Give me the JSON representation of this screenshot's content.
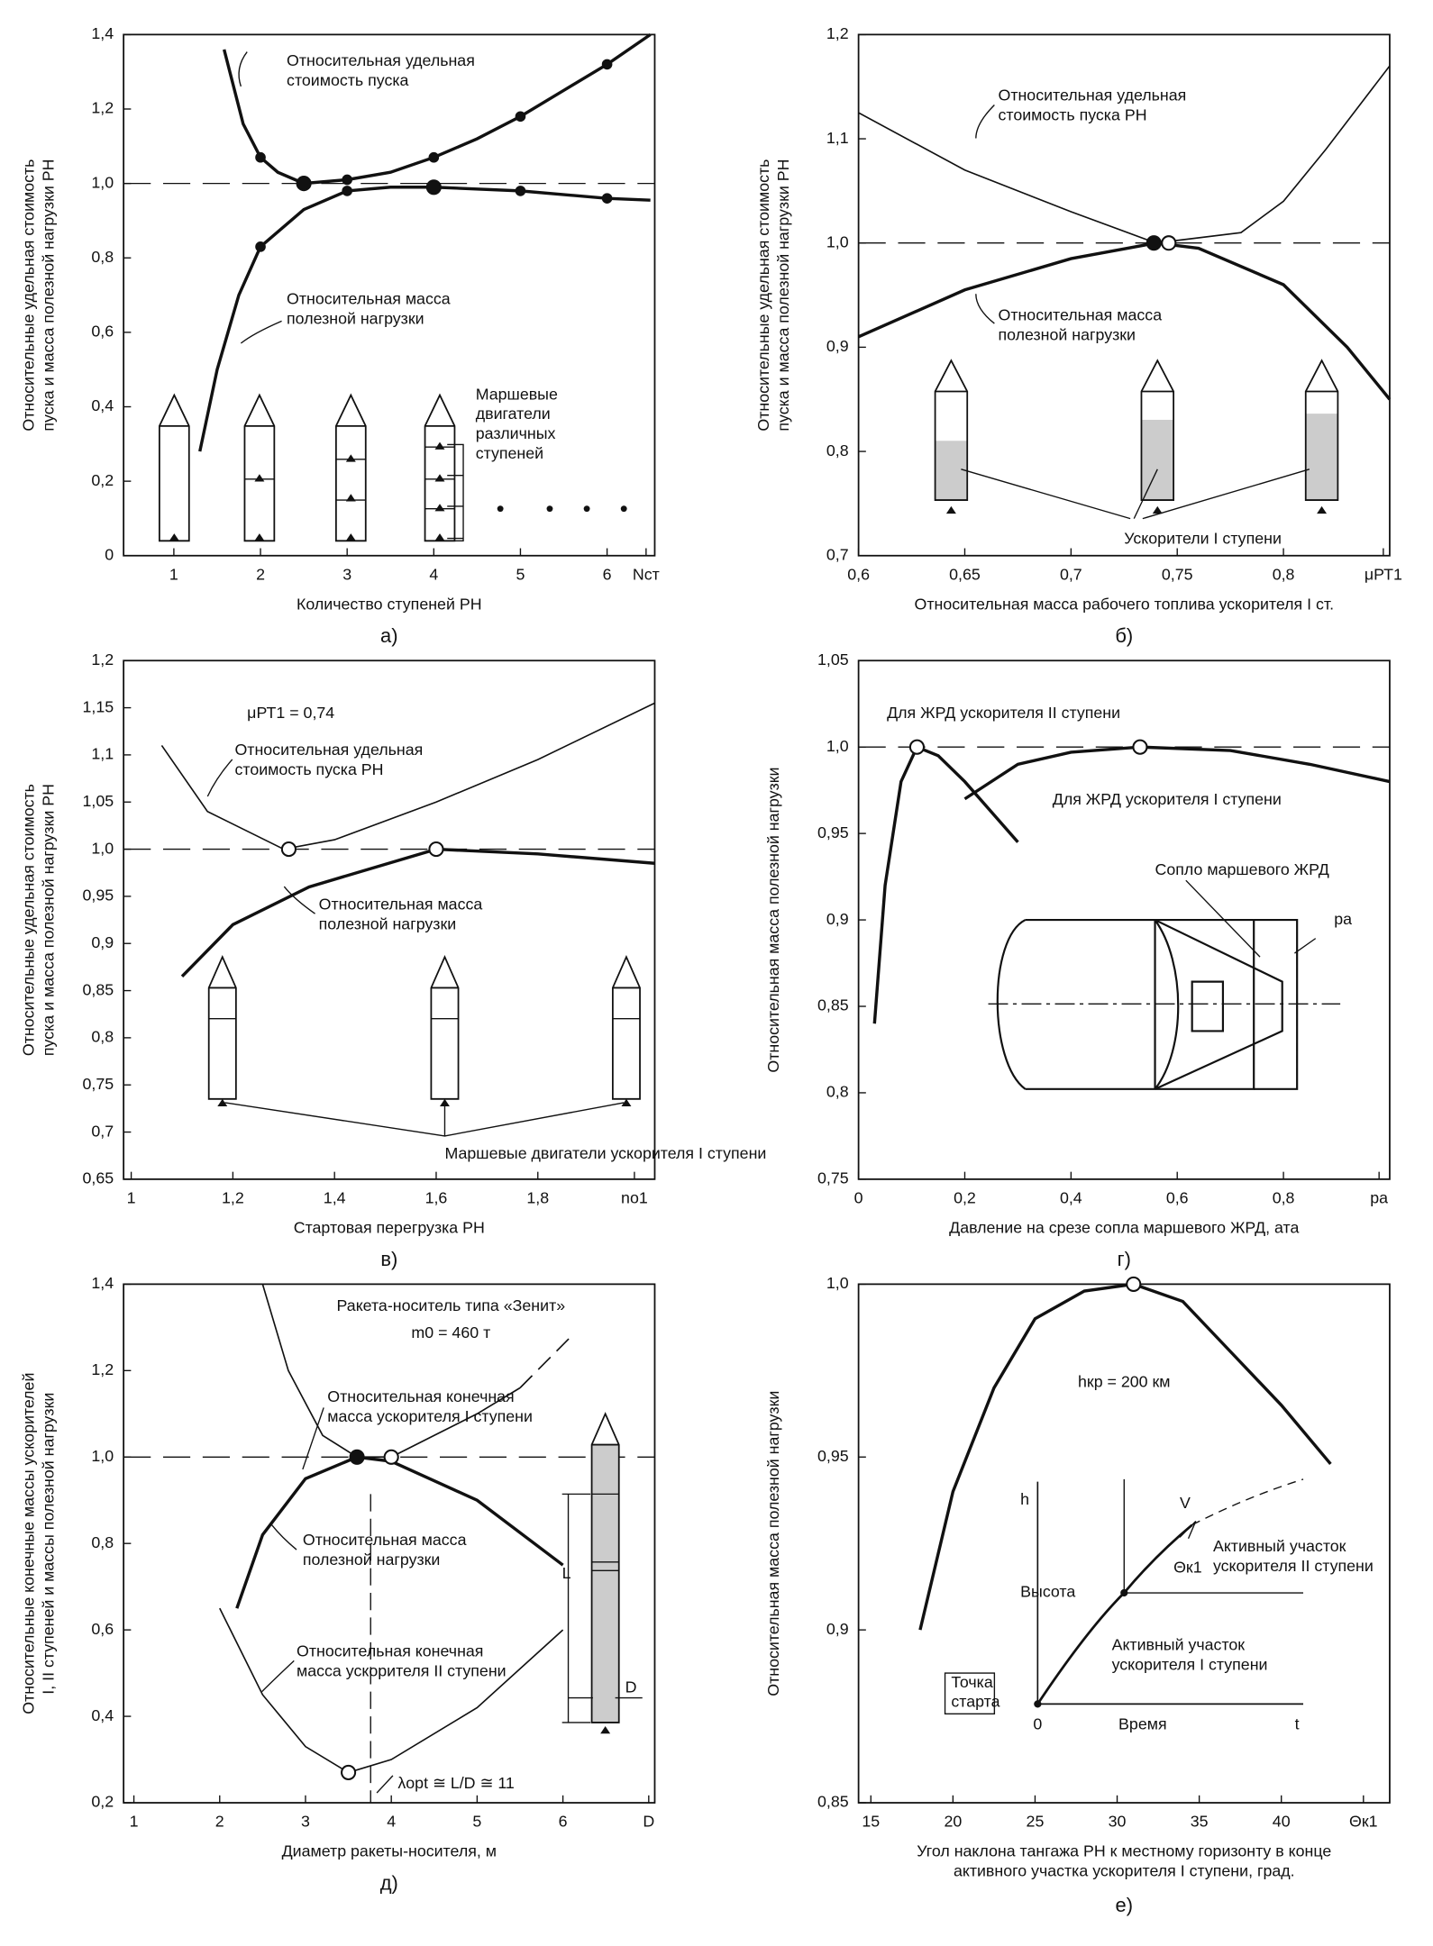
{
  "chart_data": [
    {
      "type": "line",
      "caption": "а)",
      "xlabel": [
        "Количество ступеней РН"
      ],
      "ylabel": [
        "Относительные удельная стоимость",
        "пуска и масса полезной нагрузки РН"
      ],
      "xlim": [
        0.42,
        6.55
      ],
      "ylim": [
        0,
        1.4
      ],
      "xticks": [
        1,
        2,
        3,
        4,
        5,
        6,
        {
          "value": 6.45,
          "label": "Nст"
        }
      ],
      "yticks": [
        0,
        {
          "value": 0.2,
          "label": "0,2"
        },
        {
          "value": 0.4,
          "label": "0,4"
        },
        {
          "value": 0.6,
          "label": "0,6"
        },
        {
          "value": 0.8,
          "label": "0,8"
        },
        {
          "value": 1.0,
          "label": "1,0"
        },
        {
          "value": 1.2,
          "label": "1,2"
        },
        {
          "value": 1.4,
          "label": "1,4"
        }
      ],
      "refline": 1.0,
      "series": [
        {
          "name": [
            "Относительная удельная",
            "стоимость пуска"
          ],
          "line_width": 2.5,
          "x": [
            1.58,
            1.8,
            2,
            2.2,
            2.5,
            3,
            3.5,
            4,
            4.5,
            5,
            5.5,
            6,
            6.5
          ],
          "values": [
            1.36,
            1.16,
            1.07,
            1.03,
            1.0,
            1.01,
            1.03,
            1.07,
            1.12,
            1.18,
            1.25,
            1.32,
            1.4
          ]
        },
        {
          "name": [
            "Относительная масса",
            "полезной нагрузки"
          ],
          "line_width": 2.5,
          "x": [
            1.3,
            1.5,
            1.75,
            2,
            2.5,
            3,
            3.5,
            4,
            5,
            6,
            6.5
          ],
          "values": [
            0.28,
            0.5,
            0.7,
            0.83,
            0.93,
            0.98,
            0.99,
            0.99,
            0.98,
            0.96,
            0.955
          ]
        }
      ],
      "markers": [
        {
          "x": 2,
          "y": 1.07,
          "style": "dot"
        },
        {
          "x": 2.5,
          "y": 1.0,
          "style": "filled"
        },
        {
          "x": 3,
          "y": 1.01,
          "style": "dot"
        },
        {
          "x": 4,
          "y": 1.07,
          "style": "dot"
        },
        {
          "x": 5,
          "y": 1.18,
          "style": "dot"
        },
        {
          "x": 6,
          "y": 1.32,
          "style": "dot"
        },
        {
          "x": 2,
          "y": 0.83,
          "style": "dot"
        },
        {
          "x": 3,
          "y": 0.98,
          "style": "dot"
        },
        {
          "x": 4,
          "y": 0.99,
          "style": "filled"
        },
        {
          "x": 5,
          "y": 0.98,
          "style": "dot"
        },
        {
          "x": 6,
          "y": 0.96,
          "style": "dot"
        }
      ],
      "annotations": [
        [
          "Маршевые",
          "двигатели",
          "различных",
          "ступеней"
        ]
      ]
    },
    {
      "type": "line",
      "caption": "б)",
      "xlabel": [
        "Относительная масса рабочего топлива ускорителя I ст."
      ],
      "ylabel": [
        "Относительные удельная стоимость",
        "пуска и масса полезной нагрузки РН"
      ],
      "xlim": [
        0.6,
        0.85
      ],
      "ylim": [
        0.7,
        1.2
      ],
      "xticks": [
        {
          "value": 0.6,
          "label": "0,6"
        },
        {
          "value": 0.65,
          "label": "0,65"
        },
        {
          "value": 0.7,
          "label": "0,7"
        },
        {
          "value": 0.75,
          "label": "0,75"
        },
        {
          "value": 0.8,
          "label": "0,8"
        },
        {
          "value": 0.847,
          "label": "μРТ1"
        }
      ],
      "yticks": [
        {
          "value": 0.7,
          "label": "0,7"
        },
        {
          "value": 0.8,
          "label": "0,8"
        },
        {
          "value": 0.9,
          "label": "0,9"
        },
        {
          "value": 1.0,
          "label": "1,0"
        },
        {
          "value": 1.1,
          "label": "1,1"
        },
        {
          "value": 1.2,
          "label": "1,2"
        }
      ],
      "refline": 1.0,
      "series": [
        {
          "name": [
            "Относительная удельная",
            "стоимость пуска РН"
          ],
          "line_width": 1.2,
          "x": [
            0.6,
            0.65,
            0.7,
            0.74,
            0.78,
            0.8,
            0.82,
            0.85
          ],
          "values": [
            1.125,
            1.07,
            1.03,
            1.0,
            1.01,
            1.04,
            1.09,
            1.17
          ]
        },
        {
          "name": [
            "Относительная масса",
            "полезной нагрузки"
          ],
          "line_width": 2.5,
          "x": [
            0.6,
            0.65,
            0.7,
            0.74,
            0.76,
            0.8,
            0.83,
            0.85
          ],
          "values": [
            0.91,
            0.955,
            0.985,
            1.0,
            0.995,
            0.96,
            0.9,
            0.85
          ]
        }
      ],
      "markers": [
        {
          "x": 0.739,
          "y": 1.0,
          "style": "filled"
        },
        {
          "x": 0.746,
          "y": 1.0,
          "style": "open"
        }
      ],
      "annotations": [
        [
          "Ускорители I ступени"
        ]
      ]
    },
    {
      "type": "line",
      "caption": "в)",
      "xlabel": [
        "Стартовая перегрузка РН"
      ],
      "ylabel": [
        "Относительные удельная стоимость",
        "пуска и масса полезной нагрузки РН"
      ],
      "xlim": [
        0.985,
        2.03
      ],
      "ylim": [
        0.65,
        1.2
      ],
      "xticks": [
        1,
        {
          "value": 1.2,
          "label": "1,2"
        },
        {
          "value": 1.4,
          "label": "1,4"
        },
        {
          "value": 1.6,
          "label": "1,6"
        },
        {
          "value": 1.8,
          "label": "1,8"
        },
        {
          "value": 1.99,
          "label": "nо1"
        }
      ],
      "yticks": [
        {
          "value": 0.65,
          "label": "0,65"
        },
        {
          "value": 0.7,
          "label": "0,7"
        },
        {
          "value": 0.75,
          "label": "0,75"
        },
        {
          "value": 0.8,
          "label": "0,8"
        },
        {
          "value": 0.85,
          "label": "0,85"
        },
        {
          "value": 0.9,
          "label": "0,9"
        },
        {
          "value": 0.95,
          "label": "0,95"
        },
        {
          "value": 1.0,
          "label": "1,0"
        },
        {
          "value": 1.05,
          "label": "1,05"
        },
        {
          "value": 1.1,
          "label": "1,1"
        },
        {
          "value": 1.15,
          "label": "1,15"
        },
        {
          "value": 1.2,
          "label": "1,2"
        }
      ],
      "refline": 1.0,
      "series": [
        {
          "name": [
            "Относительная удельная",
            "стоимость пуска РН"
          ],
          "line_width": 1.2,
          "x": [
            1.06,
            1.15,
            1.3,
            1.4,
            1.6,
            1.8,
            2.03
          ],
          "values": [
            1.11,
            1.04,
            1.0,
            1.01,
            1.05,
            1.095,
            1.155
          ]
        },
        {
          "name": [
            "Относительная масса",
            "полезной нагрузки"
          ],
          "line_width": 2.5,
          "x": [
            1.1,
            1.2,
            1.35,
            1.6,
            1.8,
            2.03
          ],
          "values": [
            0.865,
            0.92,
            0.96,
            1.0,
            0.995,
            0.985
          ]
        }
      ],
      "markers": [
        {
          "x": 1.31,
          "y": 1.0,
          "style": "open"
        },
        {
          "x": 1.6,
          "y": 1.0,
          "style": "open"
        }
      ],
      "annotations": [
        [
          "μРТ1 = 0,74"
        ],
        [
          "Маршевые двигатели ускорителя I ступени"
        ]
      ]
    },
    {
      "type": "line",
      "caption": "г)",
      "xlabel": [
        "Давление на срезе сопла маршевого ЖРД, ата"
      ],
      "ylabel": [
        "Относительная масса полезной нагрузки"
      ],
      "xlim": [
        0,
        1.0
      ],
      "ylim": [
        0.75,
        1.05
      ],
      "xticks": [
        0,
        {
          "value": 0.2,
          "label": "0,2"
        },
        {
          "value": 0.4,
          "label": "0,4"
        },
        {
          "value": 0.6,
          "label": "0,6"
        },
        {
          "value": 0.8,
          "label": "0,8"
        },
        {
          "value": 0.98,
          "label": "pа"
        }
      ],
      "yticks": [
        {
          "value": 0.75,
          "label": "0,75"
        },
        {
          "value": 0.8,
          "label": "0,8"
        },
        {
          "value": 0.85,
          "label": "0,85"
        },
        {
          "value": 0.9,
          "label": "0,9"
        },
        {
          "value": 0.95,
          "label": "0,95"
        },
        {
          "value": 1.0,
          "label": "1,0"
        },
        {
          "value": 1.05,
          "label": "1,05"
        }
      ],
      "refline": 1.0,
      "series": [
        {
          "name": [
            "Для ЖРД ускорителя II ступени"
          ],
          "line_width": 2.5,
          "x": [
            0.03,
            0.05,
            0.08,
            0.11,
            0.15,
            0.2,
            0.3
          ],
          "values": [
            0.84,
            0.92,
            0.98,
            1.0,
            0.995,
            0.98,
            0.945
          ]
        },
        {
          "name": [
            "Для ЖРД ускорителя I ступени"
          ],
          "line_width": 2.5,
          "x": [
            0.2,
            0.3,
            0.4,
            0.53,
            0.7,
            0.85,
            1.0
          ],
          "values": [
            0.97,
            0.99,
            0.997,
            1.0,
            0.998,
            0.99,
            0.98
          ]
        }
      ],
      "markers": [
        {
          "x": 0.11,
          "y": 1.0,
          "style": "open"
        },
        {
          "x": 0.53,
          "y": 1.0,
          "style": "open"
        }
      ],
      "annotations": [
        [
          "Сопло маршевого ЖРД"
        ],
        [
          "pа"
        ]
      ]
    },
    {
      "type": "line",
      "caption": "д)",
      "xlabel": [
        "Диаметр ракеты-носителя, м"
      ],
      "ylabel": [
        "Относительные конечные массы ускорителей",
        "I, II ступеней и массы полезной нагрузки"
      ],
      "xlim": [
        0.88,
        7.07
      ],
      "ylim": [
        0.2,
        1.4
      ],
      "xticks": [
        1,
        2,
        3,
        4,
        5,
        6,
        {
          "value": 7,
          "label": "D"
        }
      ],
      "yticks": [
        {
          "value": 0.2,
          "label": "0,2"
        },
        {
          "value": 0.4,
          "label": "0,4"
        },
        {
          "value": 0.6,
          "label": "0,6"
        },
        {
          "value": 0.8,
          "label": "0,8"
        },
        {
          "value": 1.0,
          "label": "1,0"
        },
        {
          "value": 1.2,
          "label": "1,2"
        },
        {
          "value": 1.4,
          "label": "1,4"
        }
      ],
      "refline": 1.0,
      "series": [
        {
          "name": [
            "Относительная конечная",
            "масса ускорителя I ступени"
          ],
          "line_width": 1.2,
          "x": [
            2.5,
            2.8,
            3.2,
            3.6,
            4.0,
            4.5,
            5,
            5.5
          ],
          "values": [
            1.4,
            1.2,
            1.05,
            1.0,
            1.0,
            1.05,
            1.1,
            1.16
          ]
        },
        {
          "line_width": 1.2,
          "dashed": true,
          "x": [
            5.5,
            6.1
          ],
          "values": [
            1.16,
            1.28
          ]
        },
        {
          "name": [
            "Относительная масса",
            "полезной нагрузки"
          ],
          "line_width": 2.5,
          "x": [
            2.2,
            2.5,
            3,
            3.6,
            4,
            5,
            6
          ],
          "values": [
            0.65,
            0.82,
            0.95,
            1.0,
            0.99,
            0.9,
            0.75
          ]
        },
        {
          "name": [
            "Относительная конечная",
            "масса ускорителя II ступени"
          ],
          "line_width": 1.2,
          "x": [
            2.0,
            2.5,
            3,
            3.5,
            4,
            5,
            6
          ],
          "values": [
            0.65,
            0.45,
            0.33,
            0.27,
            0.3,
            0.42,
            0.6
          ]
        }
      ],
      "markers": [
        {
          "x": 3.6,
          "y": 1.0,
          "style": "filled"
        },
        {
          "x": 4.0,
          "y": 1.0,
          "style": "open"
        },
        {
          "x": 3.5,
          "y": 0.27,
          "style": "open"
        }
      ],
      "annotations": [
        [
          "Ракета-носитель типа «Зенит»"
        ],
        [
          "m0 = 460 т"
        ],
        [
          "λopt ≅ L/D ≅ 11"
        ],
        [
          "L"
        ],
        [
          "D"
        ]
      ]
    },
    {
      "type": "line",
      "caption": "е)",
      "xlabel": [
        "Угол наклона тангажа РН к местному горизонту в конце",
        "активного участка ускорителя I ступени, град."
      ],
      "ylabel": [
        "Относительная масса полезной нагрузки"
      ],
      "xlim": [
        14.25,
        46.6
      ],
      "ylim": [
        0.85,
        1.0
      ],
      "xticks": [
        15,
        20,
        25,
        30,
        35,
        40,
        {
          "value": 45,
          "label": "Θк1"
        }
      ],
      "yticks": [
        {
          "value": 0.85,
          "label": "0,85"
        },
        {
          "value": 0.9,
          "label": "0,9"
        },
        {
          "value": 0.95,
          "label": "0,95"
        },
        {
          "value": 1.0,
          "label": "1,0"
        }
      ],
      "series": [
        {
          "line_width": 2.5,
          "x": [
            18,
            20,
            22.5,
            25,
            28,
            31,
            34,
            37,
            40,
            43
          ],
          "values": [
            0.9,
            0.94,
            0.97,
            0.99,
            0.998,
            1.0,
            0.995,
            0.98,
            0.965,
            0.948
          ]
        }
      ],
      "markers": [
        {
          "x": 31,
          "y": 1.0,
          "style": "open"
        }
      ],
      "annotations": [
        [
          "hкр = 200 км"
        ],
        [
          "h"
        ],
        [
          "Высота"
        ],
        [
          "0"
        ],
        [
          "Время"
        ],
        [
          "t"
        ],
        [
          "Точка",
          "старта"
        ],
        [
          "V"
        ],
        [
          "Θк1"
        ],
        [
          "Активный участок",
          "ускорителя II ступени"
        ],
        [
          "Активный участок",
          "ускорителя I ступени"
        ]
      ]
    }
  ]
}
